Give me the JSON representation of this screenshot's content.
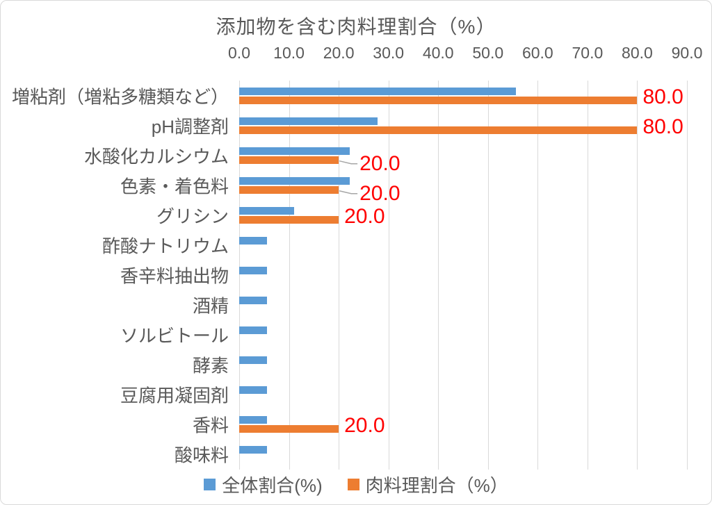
{
  "chart_data": {
    "type": "bar",
    "orientation": "horizontal",
    "title": "添加物を含む肉料理割合（%）",
    "categories": [
      "増粘剤（増粘多糖類など）",
      "pH調整剤",
      "水酸化カルシウム",
      "色素・着色料",
      "グリシン",
      "酢酸ナトリウム",
      "香辛料抽出物",
      "酒精",
      "ソルビトール",
      "酵素",
      "豆腐用凝固剤",
      "香料",
      "酸味料"
    ],
    "series": [
      {
        "name": "全体割合(%)",
        "color": "#5B9BD5",
        "values": [
          55.6,
          27.8,
          22.2,
          22.2,
          11.1,
          5.6,
          5.6,
          5.6,
          5.6,
          5.6,
          5.6,
          5.6,
          5.6
        ]
      },
      {
        "name": "肉料理割合（%）",
        "color": "#ED7D31",
        "values": [
          80.0,
          80.0,
          20.0,
          20.0,
          20.0,
          0,
          0,
          0,
          0,
          0,
          0,
          20.0,
          0
        ]
      }
    ],
    "xlim": [
      0,
      90
    ],
    "tick_step": 10,
    "tick_labels": [
      "0.0",
      "10.0",
      "20.0",
      "30.0",
      "40.0",
      "50.0",
      "60.0",
      "70.0",
      "80.0",
      "90.0"
    ],
    "grid": true,
    "legend_position": "bottom",
    "data_labels": [
      {
        "row": 0,
        "text": "80.0",
        "leader": false
      },
      {
        "row": 1,
        "text": "80.0",
        "leader": false
      },
      {
        "row": 2,
        "text": "20.0",
        "leader": true
      },
      {
        "row": 3,
        "text": "20.0",
        "leader": true
      },
      {
        "row": 4,
        "text": "20.0",
        "leader": false
      },
      {
        "row": 11,
        "text": "20.0",
        "leader": false
      }
    ],
    "colors": {
      "data_label": "#FF0000",
      "gridline": "#D9D9D9",
      "text": "#595959",
      "leader_line": "#A6A6A6"
    }
  },
  "legend": {
    "items": [
      {
        "label": "全体割合(%)",
        "color": "#5B9BD5"
      },
      {
        "label": "肉料理割合（%）",
        "color": "#ED7D31"
      }
    ]
  }
}
